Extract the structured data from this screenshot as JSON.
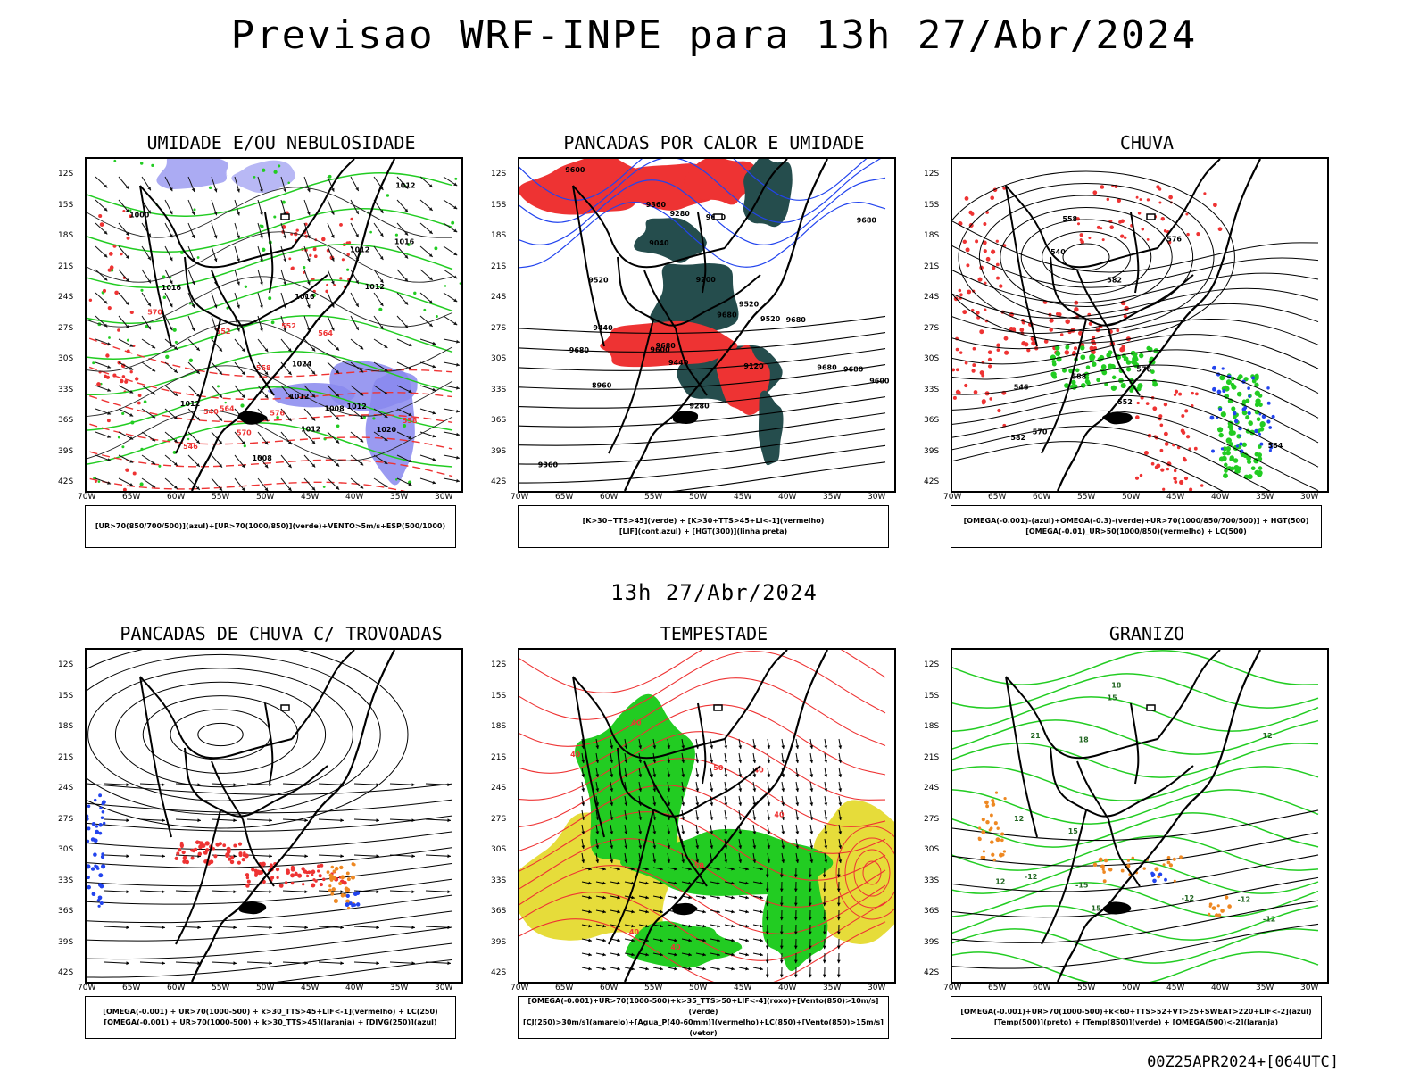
{
  "title": "Previsao WRF-INPE  para 13h 27/Abr/2024",
  "middle_date": "13h 27/Abr/2024",
  "run_info": "00Z25APR2024+[064UTC]",
  "axes": {
    "lat_labels": [
      "12S",
      "15S",
      "18S",
      "21S",
      "24S",
      "27S",
      "30S",
      "33S",
      "36S",
      "39S",
      "42S"
    ],
    "lon_labels": [
      "70W",
      "65W",
      "60W",
      "55W",
      "50W",
      "45W",
      "40W",
      "35W",
      "30W"
    ]
  },
  "colors": {
    "humid_mid": "#8888ee",
    "humid_low": "#22cc22",
    "red": "#ee3333",
    "dark_teal": "#254d4d",
    "yellow": "#e6dc3a",
    "orange": "#ee8822",
    "blue": "#2244ee",
    "black": "#000000"
  },
  "panels": [
    {
      "title": "UMIDADE E/OU NEBULOSIDADE",
      "legend": [
        "[UR>70(850/700/500)](azul)+[UR>70(1000/850)](verde)+VENTO>5m/s+ESP(500/1000)"
      ],
      "contour_labels": [
        "1012",
        "1012",
        "1012",
        "1012",
        "1012",
        "1008",
        "1012",
        "1016",
        "1016",
        "1016",
        "1012",
        "1008",
        "1000",
        "1024",
        "1020",
        "576",
        "570",
        "564",
        "558",
        "552",
        "546",
        "540",
        "552",
        "558",
        "564",
        "570"
      ]
    },
    {
      "title": "PANCADAS POR CALOR E UMIDADE",
      "legend": [
        "[K>30+TTS>45](verde) + [K>30+TTS>45+LI<-1](vermelho)",
        "[LIF](cont.azul) + [HGT(300)](linha preta)"
      ],
      "contour_labels": [
        "9680",
        "9680",
        "9680",
        "9680",
        "9680",
        "9680",
        "9680",
        "9600",
        "9600",
        "9520",
        "9520",
        "9440",
        "9440",
        "9360",
        "9360",
        "9280",
        "9280",
        "9200",
        "9120",
        "9040",
        "8960",
        "9520",
        "9600",
        "9680"
      ]
    },
    {
      "title": "CHUVA",
      "legend": [
        "[OMEGA(-0.001)-(azul)+OMEGA(-0.3)-(verde)+UR>70(1000/850/700/500)] + HGT(500)",
        "[OMEGA(-0.01)_UR>50(1000/850)(vermelho) + LC(500)"
      ],
      "contour_labels": [
        "588",
        "582",
        "576",
        "570",
        "564",
        "558",
        "552",
        "546",
        "540",
        "576",
        "582"
      ]
    },
    {
      "title": "PANCADAS DE CHUVA C/ TROVOADAS",
      "legend": [
        "[OMEGA(-0.001) + UR>70(1000-500) + k>30_TTS>45+LIF<-1](vermelho) + LC(250)",
        "[OMEGA(-0.001) + UR>70(1000-500) + k>30_TTS>45](laranja) + [DIVG(250)](azul)"
      ],
      "contour_labels": []
    },
    {
      "title": "TEMPESTADE",
      "legend": [
        "[OMEGA(-0.001)+UR>70(1000-500)+k>35_TTS>50+LIF<-4](roxo)+[Vento(850)>10m/s](verde)",
        "[CJ(250)>30m/s](amarelo)+[Agua_P(40-60mm)](vermelho)+LC(850)+[Vento(850)>15m/s](vetor)"
      ],
      "contour_labels": [
        "40",
        "40",
        "40",
        "40",
        "50",
        "50",
        "40",
        "40"
      ]
    },
    {
      "title": "GRANIZO",
      "legend": [
        "[OMEGA(-0.001)+UR>70(1000-500)+k<60+TTS>52+VT>25+SWEAT>220+LIF<-2](azul)",
        "[Temp(500)](preto) + [Temp(850)](verde) + [OMEGA(500)<-2](laranja)"
      ],
      "contour_labels": [
        "-12",
        "-12",
        "-12",
        "12",
        "15",
        "18",
        "21",
        "12",
        "15",
        "18",
        "12",
        "15",
        "-12",
        "-15"
      ]
    }
  ]
}
